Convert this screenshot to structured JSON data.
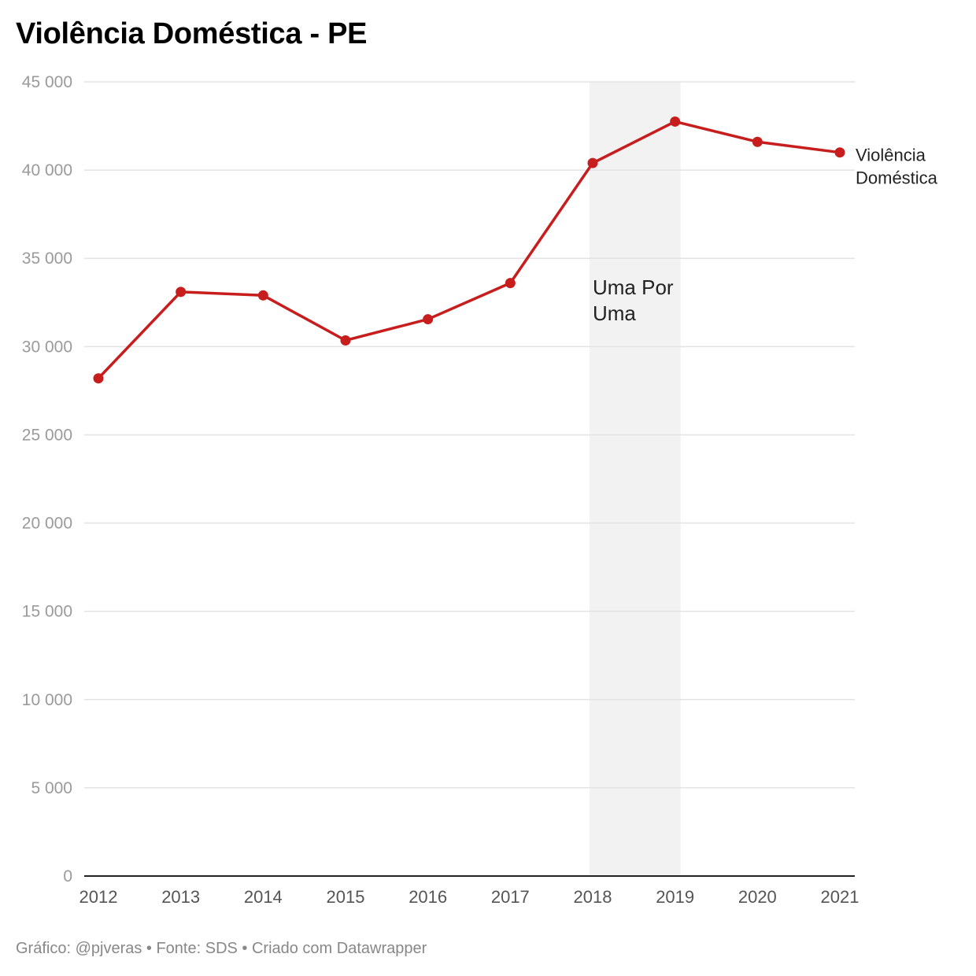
{
  "title": "Violência Doméstica - PE",
  "footer": "Gráfico: @pjveras • Fonte: SDS • Criado com Datawrapper",
  "chart_data": {
    "type": "line",
    "title": "Violência Doméstica - PE",
    "x": [
      2012,
      2013,
      2014,
      2015,
      2016,
      2017,
      2018,
      2019,
      2020,
      2021
    ],
    "x_tick_labels": [
      "2012",
      "2013",
      "2014",
      "2015",
      "2016",
      "2017",
      "2018",
      "2019",
      "2020",
      "2021"
    ],
    "series": [
      {
        "name_lines": [
          "Violência",
          "Doméstica"
        ],
        "values": [
          28200,
          33100,
          32900,
          30350,
          31550,
          33600,
          40400,
          42750,
          41600,
          41000
        ],
        "color": "#c71e1d"
      }
    ],
    "ylim": [
      0,
      45000
    ],
    "y_ticks": [
      0,
      5000,
      10000,
      15000,
      20000,
      25000,
      30000,
      35000,
      40000,
      45000
    ],
    "y_tick_labels": [
      "0",
      "5 000",
      "10 000",
      "15 000",
      "20 000",
      "25 000",
      "30 000",
      "35 000",
      "40 000",
      "45 000"
    ],
    "grid": true,
    "highlight_band": {
      "x_range": [
        2018,
        2019
      ],
      "label_lines": [
        "Uma Por",
        "Uma"
      ],
      "color": "#f2f2f2"
    }
  }
}
